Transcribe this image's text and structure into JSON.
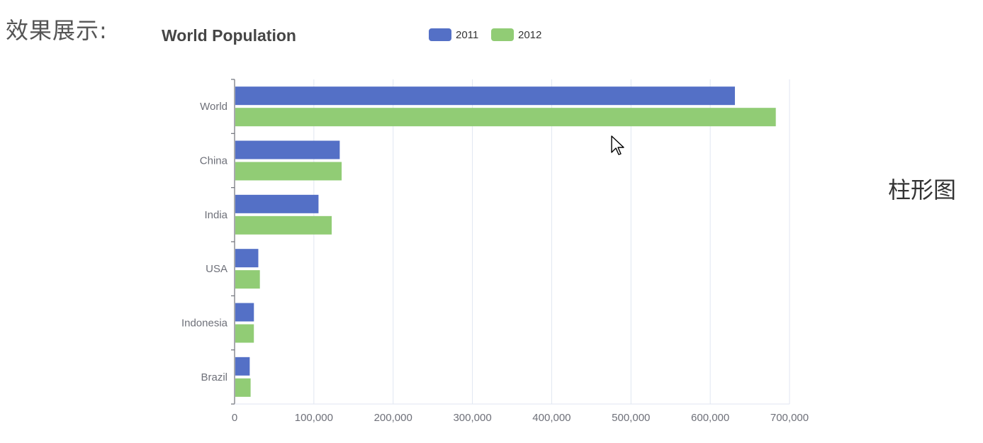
{
  "page": {
    "heading": "效果展示:",
    "side_label": "柱形图"
  },
  "colors": {
    "series_2011": "#5470c6",
    "series_2012": "#91cc75",
    "axis": "#6e7079",
    "grid": "#e0e6f1",
    "title": "#464646",
    "label": "#6e7079"
  },
  "chart_data": {
    "type": "bar",
    "orientation": "horizontal",
    "title": "World Population",
    "categories": [
      "Brazil",
      "Indonesia",
      "USA",
      "India",
      "China",
      "World"
    ],
    "series": [
      {
        "name": "2011",
        "values": [
          18203,
          23489,
          29034,
          104970,
          131744,
          630230
        ]
      },
      {
        "name": "2012",
        "values": [
          19325,
          23438,
          31000,
          121594,
          134141,
          681807
        ]
      }
    ],
    "xlim": [
      0,
      700000
    ],
    "x_ticks": [
      0,
      100000,
      200000,
      300000,
      400000,
      500000,
      600000,
      700000
    ],
    "x_tick_labels": [
      "0",
      "100,000",
      "200,000",
      "300,000",
      "400,000",
      "500,000",
      "600,000",
      "700,000"
    ],
    "legend_position": "top-center",
    "grid": "vertical-lines"
  }
}
